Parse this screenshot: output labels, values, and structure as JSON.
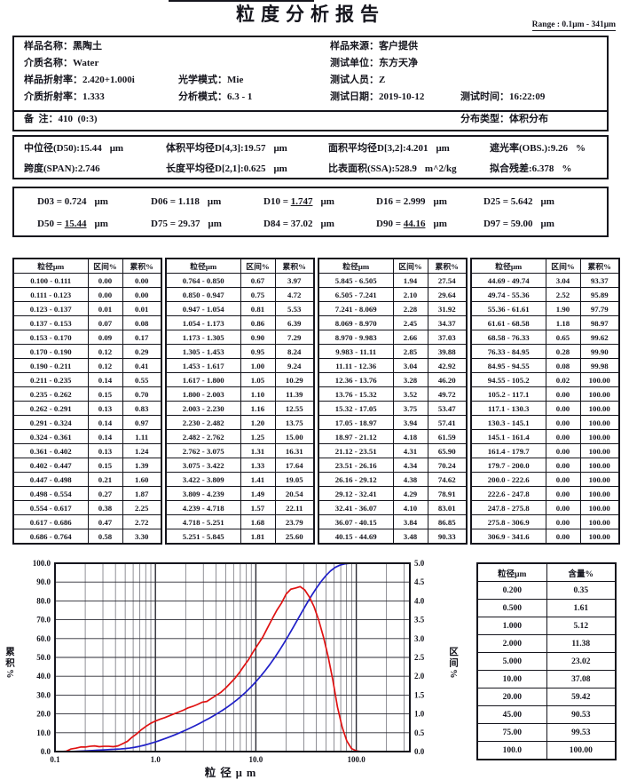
{
  "title": "粒度分析报告",
  "range_label": "Range : 0.1μm - 341μm",
  "punct": {
    "colon_wide": "：",
    "colon": ":",
    "eq": " = "
  },
  "info": {
    "rows": [
      [
        {
          "col": 0,
          "label": "样品名称",
          "value": "黑陶土"
        },
        {
          "col": 2,
          "label": "样品来源",
          "value": "客户提供"
        }
      ],
      [
        {
          "col": 0,
          "label": "介质名称",
          "value": "Water"
        },
        {
          "col": 2,
          "label": "测试单位",
          "value": "东方天净"
        }
      ],
      [
        {
          "col": 0,
          "label": "样品折射率",
          "value": "2.420+1.000i"
        },
        {
          "col": 1,
          "label": "光学模式",
          "value": "Mie"
        },
        {
          "col": 2,
          "label": "测试人员",
          "value": "Z"
        }
      ],
      [
        {
          "col": 0,
          "label": "介质折射率",
          "value": "1.333"
        },
        {
          "col": 1,
          "label": "分析模式",
          "value": "6.3 - 1"
        },
        {
          "col": 2,
          "label": "测试日期",
          "value": "2019-10-12"
        },
        {
          "col": 3,
          "label": "测试时间",
          "value": "16:22:09"
        }
      ],
      [
        {
          "col": 0,
          "label": "备  注",
          "value": "410  (0:3)"
        },
        {
          "col": 3,
          "label": "分布类型",
          "value": "体积分布"
        }
      ]
    ]
  },
  "summary": {
    "rows": [
      [
        {
          "label": "中位径(D50)",
          "value": "15.44",
          "unit": "μm"
        },
        {
          "label": "体积平均径D[4,3]",
          "value": "19.57",
          "unit": "μm"
        },
        {
          "label": "面积平均径D[3,2]",
          "value": "4.201",
          "unit": "μm"
        },
        {
          "label": "遮光率(OBS.)",
          "value": "9.26",
          "unit": "%"
        }
      ],
      [
        {
          "label": "跨度(SPAN)",
          "value": "2.746",
          "unit": ""
        },
        {
          "label": "长度平均径D[2,1]",
          "value": "0.625",
          "unit": "μm"
        },
        {
          "label": "比表面积(SSA)",
          "value": "528.9",
          "unit": "m^2/kg"
        },
        {
          "label": "拟合残差",
          "value": "6.378",
          "unit": "%"
        }
      ]
    ]
  },
  "dvalues": [
    {
      "name": "D03",
      "value": "0.724",
      "unit": "μm",
      "underline": false
    },
    {
      "name": "D06",
      "value": "1.118",
      "unit": "μm",
      "underline": false
    },
    {
      "name": "D10",
      "value": "1.747",
      "unit": "μm",
      "underline": true
    },
    {
      "name": "D16",
      "value": "2.999",
      "unit": "μm",
      "underline": false
    },
    {
      "name": "D25",
      "value": "5.642",
      "unit": "μm",
      "underline": false
    },
    {
      "name": "D50",
      "value": "15.44",
      "unit": "μm",
      "underline": true
    },
    {
      "name": "D75",
      "value": "29.37",
      "unit": "μm",
      "underline": false
    },
    {
      "name": "D84",
      "value": "37.02",
      "unit": "μm",
      "underline": false
    },
    {
      "name": "D90",
      "value": "44.16",
      "unit": "μm",
      "underline": true
    },
    {
      "name": "D97",
      "value": "59.00",
      "unit": "μm",
      "underline": false
    }
  ],
  "table": {
    "headers": [
      "粒径μm",
      "区间%",
      "累积%"
    ],
    "groups": [
      [
        [
          "0.100 - 0.111",
          "0.00",
          "0.00"
        ],
        [
          "0.111 - 0.123",
          "0.00",
          "0.00"
        ],
        [
          "0.123 - 0.137",
          "0.01",
          "0.01"
        ],
        [
          "0.137 - 0.153",
          "0.07",
          "0.08"
        ],
        [
          "0.153 - 0.170",
          "0.09",
          "0.17"
        ],
        [
          "0.170 - 0.190",
          "0.12",
          "0.29"
        ],
        [
          "0.190 - 0.211",
          "0.12",
          "0.41"
        ],
        [
          "0.211 - 0.235",
          "0.14",
          "0.55"
        ],
        [
          "0.235 - 0.262",
          "0.15",
          "0.70"
        ],
        [
          "0.262 - 0.291",
          "0.13",
          "0.83"
        ],
        [
          "0.291 - 0.324",
          "0.14",
          "0.97"
        ],
        [
          "0.324 - 0.361",
          "0.14",
          "1.11"
        ],
        [
          "0.361 - 0.402",
          "0.13",
          "1.24"
        ],
        [
          "0.402 - 0.447",
          "0.15",
          "1.39"
        ],
        [
          "0.447 - 0.498",
          "0.21",
          "1.60"
        ],
        [
          "0.498 - 0.554",
          "0.27",
          "1.87"
        ],
        [
          "0.554 - 0.617",
          "0.38",
          "2.25"
        ],
        [
          "0.617 - 0.686",
          "0.47",
          "2.72"
        ],
        [
          "0.686 - 0.764",
          "0.58",
          "3.30"
        ]
      ],
      [
        [
          "0.764 - 0.850",
          "0.67",
          "3.97"
        ],
        [
          "0.850 - 0.947",
          "0.75",
          "4.72"
        ],
        [
          "0.947 - 1.054",
          "0.81",
          "5.53"
        ],
        [
          "1.054 - 1.173",
          "0.86",
          "6.39"
        ],
        [
          "1.173 - 1.305",
          "0.90",
          "7.29"
        ],
        [
          "1.305 - 1.453",
          "0.95",
          "8.24"
        ],
        [
          "1.453 - 1.617",
          "1.00",
          "9.24"
        ],
        [
          "1.617 - 1.800",
          "1.05",
          "10.29"
        ],
        [
          "1.800 - 2.003",
          "1.10",
          "11.39"
        ],
        [
          "2.003 - 2.230",
          "1.16",
          "12.55"
        ],
        [
          "2.230 - 2.482",
          "1.20",
          "13.75"
        ],
        [
          "2.482 - 2.762",
          "1.25",
          "15.00"
        ],
        [
          "2.762 - 3.075",
          "1.31",
          "16.31"
        ],
        [
          "3.075 - 3.422",
          "1.33",
          "17.64"
        ],
        [
          "3.422 - 3.809",
          "1.41",
          "19.05"
        ],
        [
          "3.809 - 4.239",
          "1.49",
          "20.54"
        ],
        [
          "4.239 - 4.718",
          "1.57",
          "22.11"
        ],
        [
          "4.718 - 5.251",
          "1.68",
          "23.79"
        ],
        [
          "5.251 - 5.845",
          "1.81",
          "25.60"
        ]
      ],
      [
        [
          "5.845 - 6.505",
          "1.94",
          "27.54"
        ],
        [
          "6.505 - 7.241",
          "2.10",
          "29.64"
        ],
        [
          "7.241 - 8.069",
          "2.28",
          "31.92"
        ],
        [
          "8.069 - 8.970",
          "2.45",
          "34.37"
        ],
        [
          "8.970 - 9.983",
          "2.66",
          "37.03"
        ],
        [
          "9.983 - 11.11",
          "2.85",
          "39.88"
        ],
        [
          "11.11 - 12.36",
          "3.04",
          "42.92"
        ],
        [
          "12.36 - 13.76",
          "3.28",
          "46.20"
        ],
        [
          "13.76 - 15.32",
          "3.52",
          "49.72"
        ],
        [
          "15.32 - 17.05",
          "3.75",
          "53.47"
        ],
        [
          "17.05 - 18.97",
          "3.94",
          "57.41"
        ],
        [
          "18.97 - 21.12",
          "4.18",
          "61.59"
        ],
        [
          "21.12 - 23.51",
          "4.31",
          "65.90"
        ],
        [
          "23.51 - 26.16",
          "4.34",
          "70.24"
        ],
        [
          "26.16 - 29.12",
          "4.38",
          "74.62"
        ],
        [
          "29.12 - 32.41",
          "4.29",
          "78.91"
        ],
        [
          "32.41 - 36.07",
          "4.10",
          "83.01"
        ],
        [
          "36.07 - 40.15",
          "3.84",
          "86.85"
        ],
        [
          "40.15 - 44.69",
          "3.48",
          "90.33"
        ]
      ],
      [
        [
          "44.69 - 49.74",
          "3.04",
          "93.37"
        ],
        [
          "49.74 - 55.36",
          "2.52",
          "95.89"
        ],
        [
          "55.36 - 61.61",
          "1.90",
          "97.79"
        ],
        [
          "61.61 - 68.58",
          "1.18",
          "98.97"
        ],
        [
          "68.58 - 76.33",
          "0.65",
          "99.62"
        ],
        [
          "76.33 - 84.95",
          "0.28",
          "99.90"
        ],
        [
          "84.95 - 94.55",
          "0.08",
          "99.98"
        ],
        [
          "94.55 - 105.2",
          "0.02",
          "100.00"
        ],
        [
          "105.2 - 117.1",
          "0.00",
          "100.00"
        ],
        [
          "117.1 - 130.3",
          "0.00",
          "100.00"
        ],
        [
          "130.3 - 145.1",
          "0.00",
          "100.00"
        ],
        [
          "145.1 - 161.4",
          "0.00",
          "100.00"
        ],
        [
          "161.4 - 179.7",
          "0.00",
          "100.00"
        ],
        [
          "179.7 - 200.0",
          "0.00",
          "100.00"
        ],
        [
          "200.0 - 222.6",
          "0.00",
          "100.00"
        ],
        [
          "222.6 - 247.8",
          "0.00",
          "100.00"
        ],
        [
          "247.8 - 275.8",
          "0.00",
          "100.00"
        ],
        [
          "275.8 - 306.9",
          "0.00",
          "100.00"
        ],
        [
          "306.9 - 341.6",
          "0.00",
          "100.00"
        ]
      ]
    ]
  },
  "side_table": {
    "headers": [
      "粒径μm",
      "含量%"
    ],
    "rows": [
      [
        "0.200",
        "0.35"
      ],
      [
        "0.500",
        "1.61"
      ],
      [
        "1.000",
        "5.12"
      ],
      [
        "2.000",
        "11.38"
      ],
      [
        "5.000",
        "23.02"
      ],
      [
        "10.00",
        "37.08"
      ],
      [
        "20.00",
        "59.42"
      ],
      [
        "45.00",
        "90.53"
      ],
      [
        "75.00",
        "99.53"
      ],
      [
        "100.0",
        "100.00"
      ]
    ]
  },
  "chart_data": {
    "type": "line",
    "x_scale": "log",
    "xlabel": "粒径μm",
    "x_range": [
      0.1,
      341.6
    ],
    "x_ticks": [
      0.1,
      1.0,
      10.0,
      100.0
    ],
    "grid": true,
    "left_axis": {
      "label": "累积%",
      "range": [
        0,
        100
      ],
      "step": 10
    },
    "right_axis": {
      "label": "区间%",
      "range": [
        0,
        5
      ],
      "step": 0.5
    },
    "boundaries_um": [
      0.1,
      0.111,
      0.123,
      0.137,
      0.153,
      0.17,
      0.19,
      0.211,
      0.235,
      0.262,
      0.291,
      0.324,
      0.361,
      0.402,
      0.447,
      0.498,
      0.554,
      0.617,
      0.686,
      0.764,
      0.85,
      0.947,
      1.054,
      1.173,
      1.305,
      1.453,
      1.617,
      1.8,
      2.003,
      2.23,
      2.482,
      2.762,
      3.075,
      3.422,
      3.809,
      4.239,
      4.718,
      5.251,
      5.845,
      6.505,
      7.241,
      8.069,
      8.97,
      9.983,
      11.11,
      12.36,
      13.76,
      15.32,
      17.05,
      18.97,
      21.12,
      23.51,
      26.16,
      29.12,
      32.41,
      36.07,
      40.15,
      44.69,
      49.74,
      55.36,
      61.61,
      68.58,
      76.33,
      84.95,
      94.55,
      105.2,
      117.1,
      130.3,
      145.1,
      161.4,
      179.7,
      200.0,
      222.6,
      247.8,
      275.8,
      306.9,
      341.6
    ],
    "series": [
      {
        "name": "累积%",
        "axis": "left",
        "color": "#2020c8",
        "x_mode": "upper_boundary",
        "values": [
          0.0,
          0.0,
          0.01,
          0.08,
          0.17,
          0.29,
          0.41,
          0.55,
          0.7,
          0.83,
          0.97,
          1.11,
          1.24,
          1.39,
          1.6,
          1.87,
          2.25,
          2.72,
          3.3,
          3.97,
          4.72,
          5.53,
          6.39,
          7.29,
          8.24,
          9.24,
          10.29,
          11.39,
          12.55,
          13.75,
          15.0,
          16.31,
          17.64,
          19.05,
          20.54,
          22.11,
          23.79,
          25.6,
          27.54,
          29.64,
          31.92,
          34.37,
          37.03,
          39.88,
          42.92,
          46.2,
          49.72,
          53.47,
          57.41,
          61.59,
          65.9,
          70.24,
          74.62,
          78.91,
          83.01,
          86.85,
          90.33,
          93.37,
          95.89,
          97.79,
          98.97,
          99.62,
          99.9,
          99.98,
          100.0,
          100.0,
          100.0,
          100.0,
          100.0,
          100.0,
          100.0,
          100.0,
          100.0,
          100.0,
          100.0,
          100.0
        ]
      },
      {
        "name": "区间%",
        "axis": "right",
        "color": "#e01212",
        "x_mode": "interval_midpoint",
        "values": [
          0.0,
          0.0,
          0.01,
          0.07,
          0.09,
          0.12,
          0.12,
          0.14,
          0.15,
          0.13,
          0.14,
          0.14,
          0.13,
          0.15,
          0.21,
          0.27,
          0.38,
          0.47,
          0.58,
          0.67,
          0.75,
          0.81,
          0.86,
          0.9,
          0.95,
          1.0,
          1.05,
          1.1,
          1.16,
          1.2,
          1.25,
          1.31,
          1.33,
          1.41,
          1.49,
          1.57,
          1.68,
          1.81,
          1.94,
          2.1,
          2.28,
          2.45,
          2.66,
          2.85,
          3.04,
          3.28,
          3.52,
          3.75,
          3.94,
          4.18,
          4.31,
          4.34,
          4.38,
          4.29,
          4.1,
          3.84,
          3.48,
          3.04,
          2.52,
          1.9,
          1.18,
          0.65,
          0.28,
          0.08,
          0.02,
          0.0,
          0.0,
          0.0,
          0.0,
          0.0,
          0.0,
          0.0,
          0.0,
          0.0,
          0.0,
          0.0
        ]
      }
    ]
  }
}
